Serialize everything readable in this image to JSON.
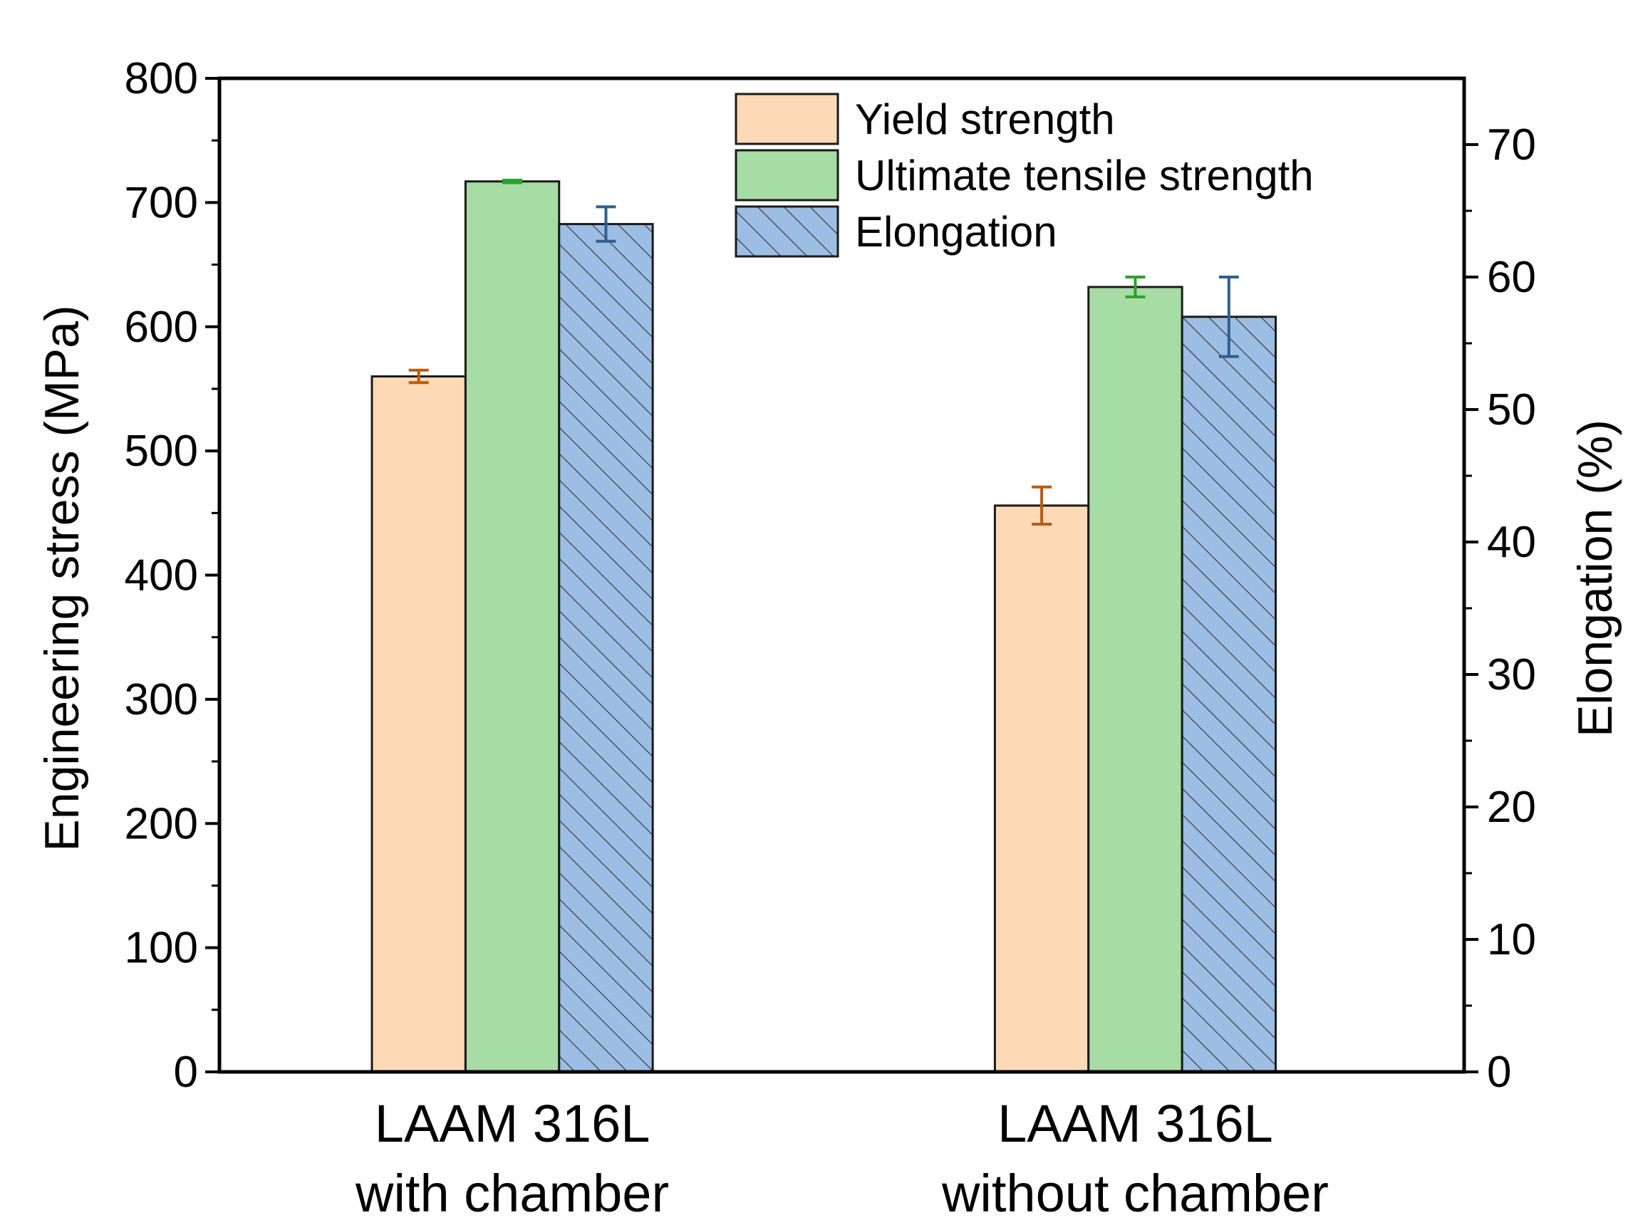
{
  "chart_data": {
    "type": "bar",
    "categories": [
      [
        "LAAM 316L",
        "with chamber"
      ],
      [
        "LAAM 316L",
        "without chamber"
      ]
    ],
    "ylabel": "Engineering stress (MPa)",
    "y2label": "Elongation (%)",
    "ylim": [
      0,
      800
    ],
    "y2lim": [
      0,
      75
    ],
    "yticks": [
      0,
      100,
      200,
      300,
      400,
      500,
      600,
      700,
      800
    ],
    "y2ticks": [
      0,
      10,
      20,
      30,
      40,
      50,
      60,
      70
    ],
    "grid": false,
    "legend_position": "top-center",
    "series": [
      {
        "name": "Yield strength",
        "axis": "left",
        "color": "#FDD9B5",
        "error_color": "#B85C12",
        "hatch": false,
        "values": [
          560,
          456
        ],
        "errors": [
          5,
          15
        ]
      },
      {
        "name": "Ultimate tensile strength",
        "axis": "left",
        "color": "#A8DCA5",
        "error_color": "#2CA02C",
        "hatch": false,
        "values": [
          717,
          632
        ],
        "errors": [
          1,
          8
        ]
      },
      {
        "name": "Elongation",
        "axis": "right",
        "color": "#9DBEE4",
        "error_color": "#2F5F8A",
        "hatch": true,
        "values": [
          64.0,
          57.0
        ],
        "errors": [
          1.3,
          3.0
        ]
      }
    ]
  }
}
